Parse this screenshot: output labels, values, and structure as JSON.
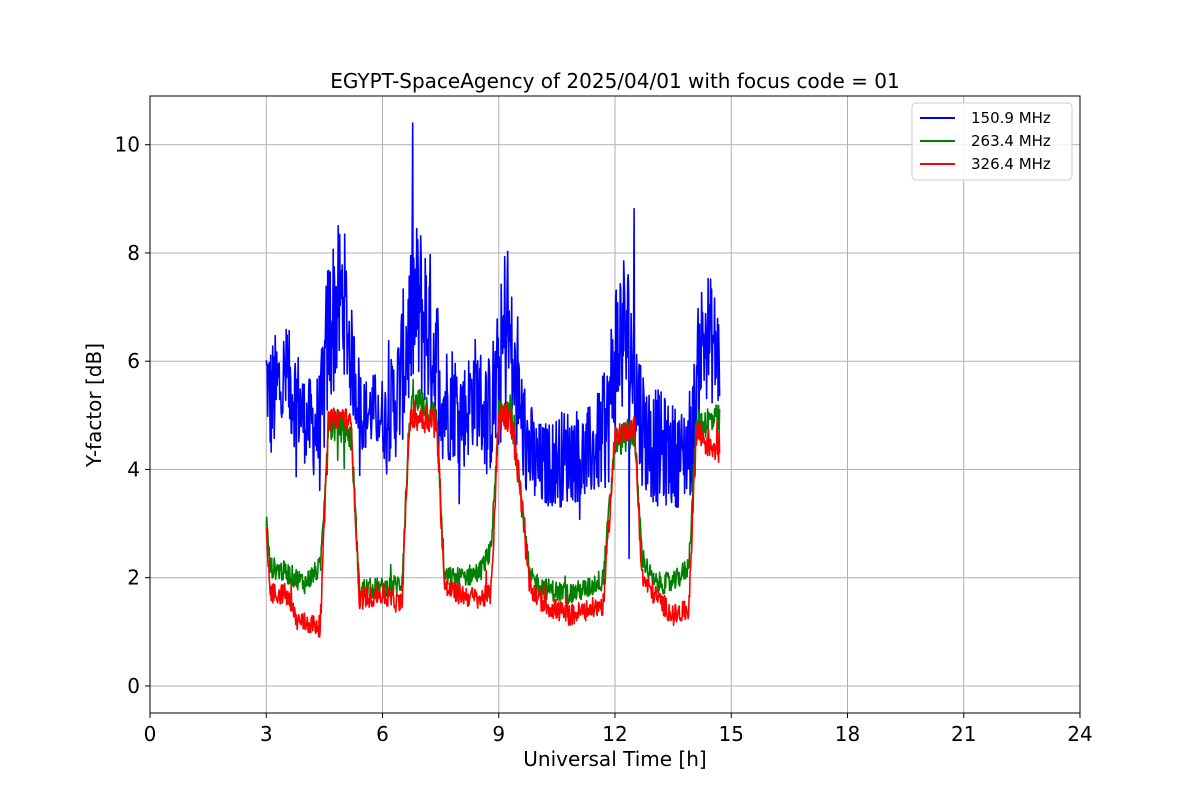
{
  "chart_data": {
    "type": "line",
    "title": "EGYPT-SpaceAgency of 2025/04/01 with focus code = 01",
    "xlabel": "Universal Time [h]",
    "ylabel": "Y-factor [dB]",
    "xlim": [
      0,
      24
    ],
    "ylim": [
      -0.5,
      10.9
    ],
    "x_ticks": [
      0,
      3,
      6,
      9,
      12,
      15,
      18,
      21,
      24
    ],
    "y_ticks": [
      0,
      2,
      4,
      6,
      8,
      10
    ],
    "grid": true,
    "legend_position": "top-right",
    "series": [
      {
        "name": "150.9 MHz",
        "color": "#0000ff",
        "x": [
          3.0,
          3.1,
          3.3,
          3.5,
          3.8,
          4.0,
          4.2,
          4.4,
          4.6,
          4.8,
          5.0,
          5.2,
          5.5,
          5.8,
          6.1,
          6.4,
          6.6,
          6.8,
          7.0,
          7.2,
          7.4,
          7.6,
          7.8,
          8.1,
          8.4,
          8.7,
          9.0,
          9.2,
          9.4,
          9.7,
          10.0,
          10.3,
          10.6,
          10.9,
          11.2,
          11.5,
          11.8,
          12.0,
          12.2,
          12.4,
          12.6,
          12.8,
          13.1,
          13.4,
          13.7,
          14.0,
          14.2,
          14.4,
          14.6,
          14.7
        ],
        "values": [
          5.8,
          5.2,
          5.5,
          5.7,
          5.3,
          4.9,
          4.8,
          4.7,
          6.5,
          7.0,
          7.2,
          6.0,
          5.0,
          5.1,
          4.9,
          5.4,
          6.2,
          7.0,
          6.9,
          6.6,
          6.0,
          5.2,
          5.3,
          5.0,
          5.5,
          4.9,
          5.6,
          6.8,
          5.6,
          4.5,
          4.0,
          4.1,
          4.2,
          4.3,
          4.2,
          4.4,
          4.8,
          6.0,
          6.6,
          6.2,
          5.2,
          4.6,
          4.4,
          4.3,
          4.2,
          4.6,
          6.3,
          6.5,
          6.2,
          6.0
        ],
        "amplitude": [
          0.7,
          1.2,
          1.1,
          1.0,
          1.0,
          0.8,
          0.9,
          1.2,
          1.6,
          1.5,
          1.4,
          1.0,
          0.7,
          0.7,
          0.8,
          1.2,
          1.5,
          1.6,
          1.7,
          1.6,
          1.4,
          1.2,
          1.1,
          1.0,
          1.0,
          1.1,
          1.4,
          1.8,
          1.2,
          1.0,
          0.9,
          0.8,
          0.9,
          0.9,
          0.9,
          0.9,
          1.2,
          1.7,
          1.6,
          1.6,
          1.3,
          1.1,
          1.1,
          1.0,
          0.9,
          1.1,
          1.2,
          1.2,
          1.1,
          1.0
        ]
      },
      {
        "name": "263.4 MHz",
        "color": "#008000",
        "x": [
          3.0,
          3.1,
          3.5,
          4.0,
          4.4,
          4.6,
          5.0,
          5.2,
          5.4,
          6.0,
          6.5,
          6.7,
          7.0,
          7.4,
          7.6,
          8.0,
          8.5,
          8.8,
          9.0,
          9.3,
          9.5,
          9.8,
          10.2,
          10.8,
          11.3,
          11.7,
          12.0,
          12.5,
          12.7,
          13.0,
          13.5,
          13.9,
          14.1,
          14.4,
          14.7
        ],
        "values": [
          3.1,
          2.2,
          2.1,
          1.9,
          2.2,
          4.8,
          4.8,
          4.6,
          1.8,
          1.8,
          1.9,
          5.0,
          5.3,
          4.9,
          2.0,
          2.0,
          2.1,
          2.5,
          5.0,
          5.2,
          4.0,
          2.0,
          1.8,
          1.7,
          1.8,
          2.0,
          4.5,
          4.7,
          2.4,
          1.9,
          1.9,
          2.2,
          4.8,
          4.9,
          4.9
        ],
        "amplitude": [
          0.2,
          0.2,
          0.2,
          0.2,
          0.2,
          0.3,
          0.3,
          0.3,
          0.2,
          0.2,
          0.2,
          0.3,
          0.3,
          0.3,
          0.2,
          0.2,
          0.2,
          0.2,
          0.3,
          0.3,
          0.3,
          0.2,
          0.2,
          0.2,
          0.2,
          0.2,
          0.3,
          0.3,
          0.2,
          0.2,
          0.2,
          0.2,
          0.3,
          0.3,
          0.3
        ]
      },
      {
        "name": "326.4 MHz",
        "color": "#ff0000",
        "x": [
          3.0,
          3.1,
          3.5,
          3.8,
          4.4,
          4.6,
          5.0,
          5.2,
          5.4,
          6.0,
          6.5,
          6.7,
          7.0,
          7.4,
          7.6,
          8.0,
          8.5,
          8.8,
          9.0,
          9.3,
          9.5,
          9.8,
          10.2,
          10.8,
          11.3,
          11.7,
          12.0,
          12.5,
          12.7,
          13.0,
          13.5,
          13.9,
          14.1,
          14.4,
          14.7
        ],
        "values": [
          2.9,
          1.7,
          1.7,
          1.2,
          1.1,
          4.9,
          5.0,
          4.8,
          1.6,
          1.7,
          1.5,
          4.9,
          5.0,
          4.9,
          1.8,
          1.7,
          1.6,
          1.7,
          5.0,
          5.0,
          4.0,
          1.8,
          1.5,
          1.3,
          1.4,
          1.5,
          4.6,
          4.8,
          2.0,
          1.7,
          1.3,
          1.4,
          4.7,
          4.5,
          4.4
        ],
        "amplitude": [
          0.2,
          0.2,
          0.2,
          0.2,
          0.2,
          0.2,
          0.2,
          0.2,
          0.2,
          0.2,
          0.2,
          0.2,
          0.3,
          0.3,
          0.2,
          0.2,
          0.2,
          0.2,
          0.3,
          0.3,
          0.3,
          0.2,
          0.2,
          0.2,
          0.2,
          0.2,
          0.2,
          0.2,
          0.2,
          0.2,
          0.2,
          0.2,
          0.3,
          0.3,
          0.3
        ]
      }
    ]
  }
}
